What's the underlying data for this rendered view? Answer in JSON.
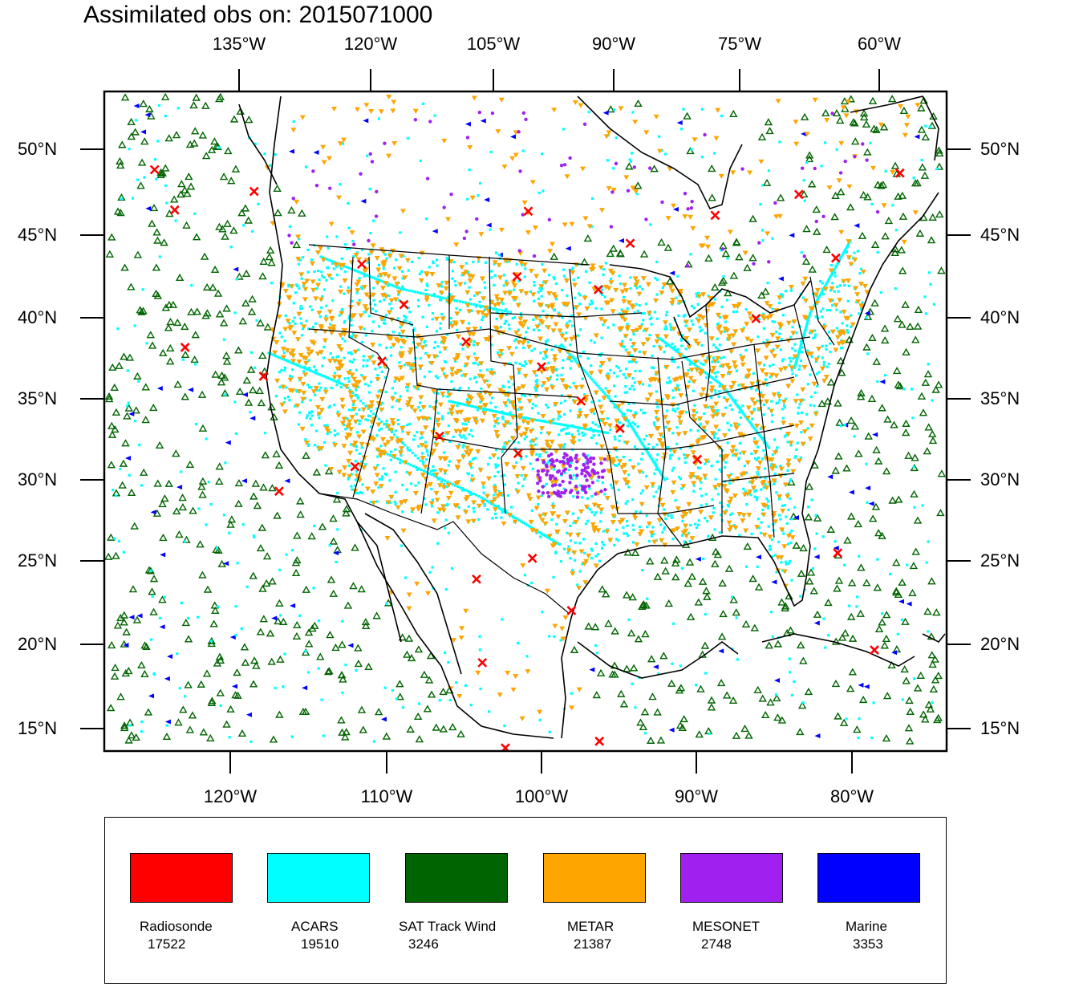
{
  "title": "Assimilated obs on: 2015071000",
  "axes": {
    "top_labels": [
      "135°W",
      "120°W",
      "105°W",
      "90°W",
      "75°W",
      "60°W"
    ],
    "bottom_labels": [
      "120°W",
      "110°W",
      "100°W",
      "90°W",
      "80°W"
    ],
    "lat_labels": [
      "50°N",
      "45°N",
      "40°N",
      "35°N",
      "30°N",
      "25°N",
      "20°N",
      "15°N"
    ]
  },
  "legend": [
    {
      "name": "Radiosonde",
      "count": "17522",
      "color": "#ff0000"
    },
    {
      "name": "ACARS",
      "count": "19510",
      "color": "#00ffff"
    },
    {
      "name": "SAT Track Wind",
      "count": "3246",
      "color": "#006400"
    },
    {
      "name": "METAR",
      "count": "21387",
      "color": "#ffa500"
    },
    {
      "name": "MESONET",
      "count": "2748",
      "color": "#a020f0"
    },
    {
      "name": "Marine",
      "count": "3353",
      "color": "#0000ff"
    }
  ],
  "colors": {
    "radiosonde": "#ff0000",
    "acars": "#00ffff",
    "sat_track_wind": "#006400",
    "metar": "#ffa500",
    "mesonet": "#a020f0",
    "marine": "#0000ff",
    "coastline": "#000000"
  },
  "radiosonde_sites": [
    [
      -123.2,
      48.6
    ],
    [
      -117.3,
      47.6
    ],
    [
      -122.2,
      46.2
    ],
    [
      -111.0,
      43.4
    ],
    [
      -108.5,
      41.0
    ],
    [
      -101.5,
      42.8
    ],
    [
      -96.5,
      42.0
    ],
    [
      -100.8,
      46.8
    ],
    [
      -94.6,
      44.8
    ],
    [
      -89.5,
      46.4
    ],
    [
      -84.5,
      47.5
    ],
    [
      -78.5,
      48.5
    ],
    [
      -73.0,
      46.9
    ],
    [
      -72.0,
      44.5
    ],
    [
      -68.0,
      49.5
    ],
    [
      -122.3,
      37.8
    ],
    [
      -117.5,
      36.3
    ],
    [
      -110.0,
      37.5
    ],
    [
      -104.7,
      38.8
    ],
    [
      -100.0,
      37.3
    ],
    [
      -106.5,
      33.0
    ],
    [
      -101.5,
      32.0
    ],
    [
      -97.5,
      35.2
    ],
    [
      -95.0,
      33.5
    ],
    [
      -90.0,
      31.5
    ],
    [
      -112.0,
      31.0
    ],
    [
      -117.0,
      29.3
    ],
    [
      -104.3,
      24.3
    ],
    [
      -100.6,
      25.6
    ],
    [
      -98.0,
      22.4
    ],
    [
      -104.0,
      19.2
    ],
    [
      -102.5,
      14.0
    ],
    [
      -96.0,
      14.4
    ],
    [
      -80.5,
      25.4
    ],
    [
      -77.5,
      19.3
    ],
    [
      -74.0,
      40.5
    ],
    [
      -86.7,
      40.0
    ],
    [
      -82.0,
      43.5
    ]
  ],
  "map": {
    "label": "Contiguous United States, Mexico, southern Canada and Caribbean observation map"
  }
}
